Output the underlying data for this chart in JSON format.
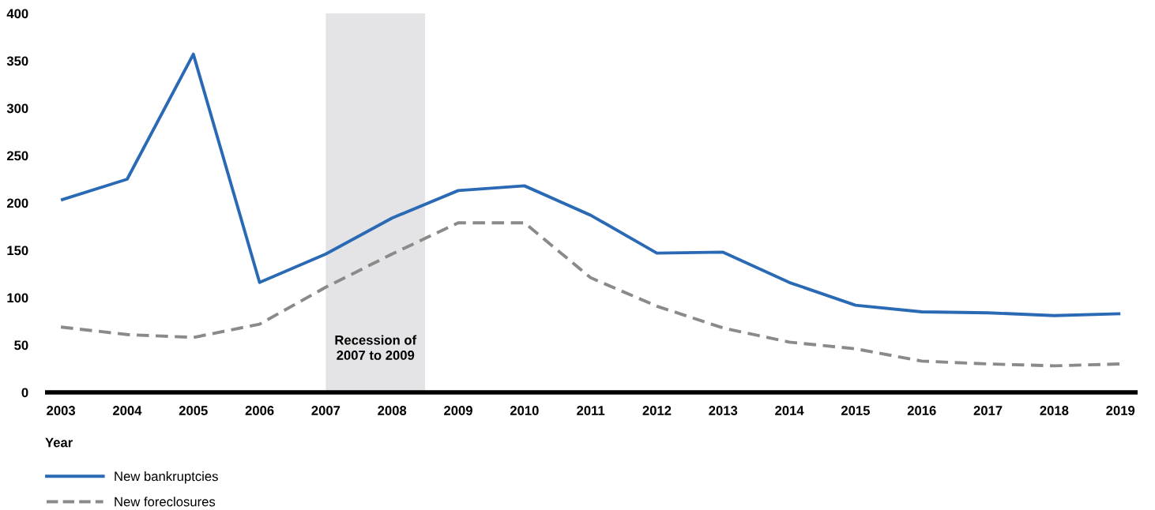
{
  "chart_data": {
    "type": "line",
    "xlabel": "Year",
    "x": [
      2003,
      2004,
      2005,
      2006,
      2007,
      2008,
      2009,
      2010,
      2011,
      2012,
      2013,
      2014,
      2015,
      2016,
      2017,
      2018,
      2019
    ],
    "xlim": [
      2002.76,
      2019.26
    ],
    "xticks": [
      2003,
      2004,
      2005,
      2006,
      2007,
      2008,
      2009,
      2010,
      2011,
      2012,
      2013,
      2014,
      2015,
      2016,
      2017,
      2018,
      2019
    ],
    "ylim": [
      0,
      400
    ],
    "yticks": [
      0,
      50,
      100,
      150,
      200,
      250,
      300,
      350,
      400
    ],
    "series": [
      {
        "name": "New bankruptcies",
        "color": "#2a6ab5",
        "line_style": "solid",
        "values": [
          203,
          225,
          357,
          116,
          146,
          184,
          213,
          218,
          187,
          147,
          148,
          116,
          92,
          85,
          84,
          81,
          83
        ]
      },
      {
        "name": "New foreclosures",
        "color": "#8a8a8a",
        "line_style": "dashed",
        "values": [
          69,
          61,
          58,
          72,
          111,
          146,
          179,
          179,
          121,
          91,
          68,
          53,
          46,
          33,
          30,
          28,
          30
        ]
      }
    ],
    "bands": [
      {
        "axis": "x",
        "from": 2007,
        "to": 2008.5,
        "label": "Recession of\n2007 to 2009",
        "color": "#e4e4e6"
      }
    ],
    "grid": false,
    "legend": "bottom left"
  }
}
